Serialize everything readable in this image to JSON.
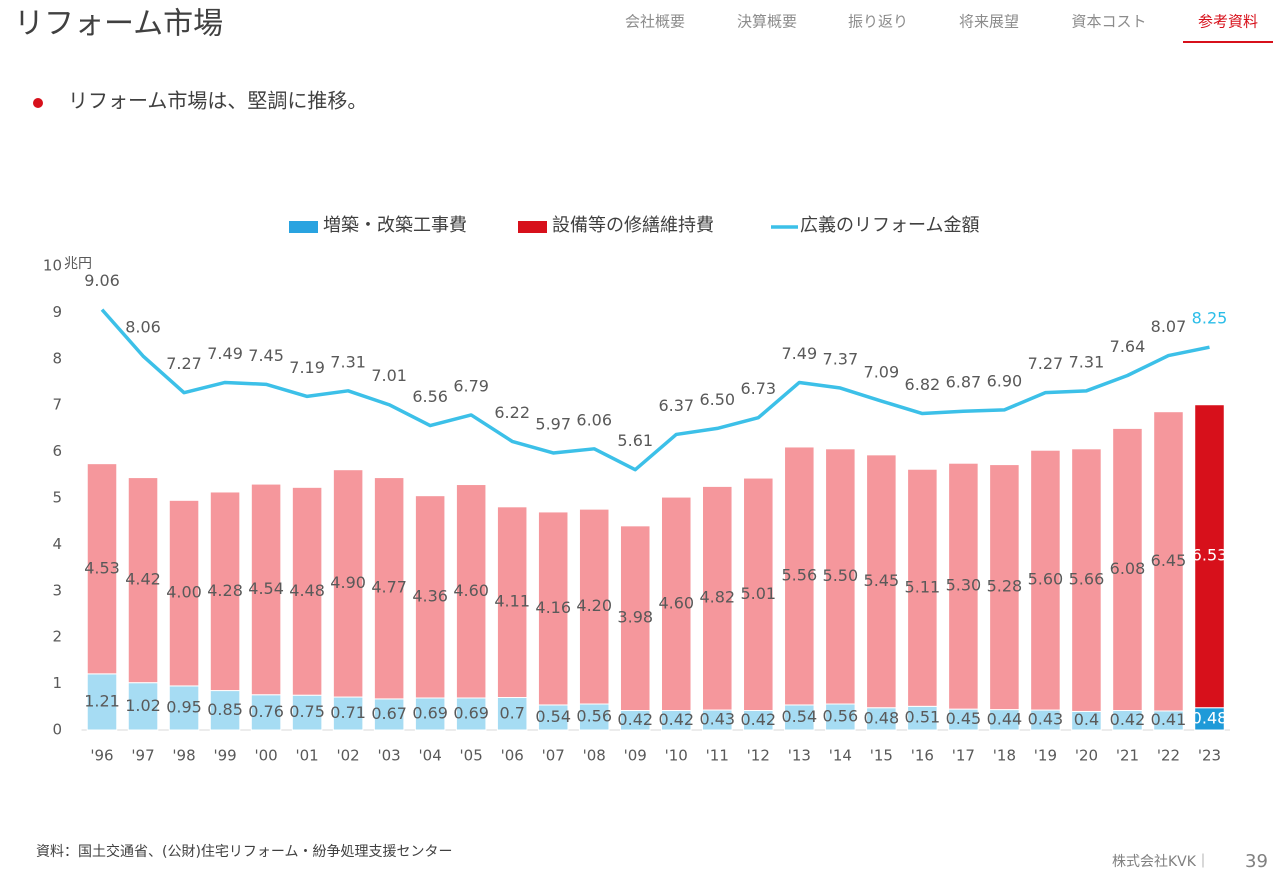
{
  "header": {
    "title": "リフォーム市場",
    "nav": [
      "会社概要",
      "決算概要",
      "振り返り",
      "将来展望",
      "資本コスト",
      "参考資料"
    ],
    "active_nav": 5
  },
  "bullet": "リフォーム市場は、堅調に推移。",
  "chart_data": {
    "type": "stacked_bar_line",
    "y_unit": "兆円",
    "categories": [
      "'96",
      "'97",
      "'98",
      "'99",
      "'00",
      "'01",
      "'02",
      "'03",
      "'04",
      "'05",
      "'06",
      "'07",
      "'08",
      "'09",
      "'10",
      "'11",
      "'12",
      "'13",
      "'14",
      "'15",
      "'16",
      "'17",
      "'18",
      "'19",
      "'20",
      "'21",
      "'22",
      "'23"
    ],
    "series": [
      {
        "name": "増築・改築工事費",
        "type": "bar",
        "color": "#29a3e0",
        "colors": [
          "#a6dcf3",
          "#a6dcf3",
          "#a6dcf3",
          "#a6dcf3",
          "#a6dcf3",
          "#a6dcf3",
          "#a6dcf3",
          "#a6dcf3",
          "#a6dcf3",
          "#a6dcf3",
          "#a6dcf3",
          "#a6dcf3",
          "#a6dcf3",
          "#a6dcf3",
          "#a6dcf3",
          "#a6dcf3",
          "#a6dcf3",
          "#a6dcf3",
          "#a6dcf3",
          "#a6dcf3",
          "#a6dcf3",
          "#a6dcf3",
          "#a6dcf3",
          "#a6dcf3",
          "#a6dcf3",
          "#a6dcf3",
          "#a6dcf3",
          "#1e9ad8"
        ],
        "values": [
          1.21,
          1.02,
          0.95,
          0.85,
          0.76,
          0.75,
          0.71,
          0.67,
          0.69,
          0.69,
          0.7,
          0.54,
          0.56,
          0.42,
          0.42,
          0.43,
          0.42,
          0.54,
          0.56,
          0.48,
          0.51,
          0.45,
          0.44,
          0.43,
          0.4,
          0.42,
          0.41,
          0.48
        ],
        "value_labels": [
          "1.21",
          "1.02",
          "0.95",
          "0.85",
          "0.76",
          "0.75",
          "0.71",
          "0.67",
          "0.69",
          "0.69",
          "0.7",
          "0.54",
          "0.56",
          "0.42",
          "0.42",
          "0.43",
          "0.42",
          "0.54",
          "0.56",
          "0.48",
          "0.51",
          "0.45",
          "0.44",
          "0.43",
          "0.4",
          "0.42",
          "0.41",
          "0.48"
        ],
        "value_label_colors": [
          "#595959",
          "#595959",
          "#595959",
          "#595959",
          "#595959",
          "#595959",
          "#595959",
          "#595959",
          "#595959",
          "#595959",
          "#595959",
          "#595959",
          "#595959",
          "#595959",
          "#595959",
          "#595959",
          "#595959",
          "#595959",
          "#595959",
          "#595959",
          "#595959",
          "#595959",
          "#595959",
          "#595959",
          "#595959",
          "#595959",
          "#595959",
          "#ffffff"
        ]
      },
      {
        "name": "設備等の修繕維持費",
        "type": "bar",
        "color": "#d7101b",
        "colors": [
          "#f5979c",
          "#f5979c",
          "#f5979c",
          "#f5979c",
          "#f5979c",
          "#f5979c",
          "#f5979c",
          "#f5979c",
          "#f5979c",
          "#f5979c",
          "#f5979c",
          "#f5979c",
          "#f5979c",
          "#f5979c",
          "#f5979c",
          "#f5979c",
          "#f5979c",
          "#f5979c",
          "#f5979c",
          "#f5979c",
          "#f5979c",
          "#f5979c",
          "#f5979c",
          "#f5979c",
          "#f5979c",
          "#f5979c",
          "#f5979c",
          "#d7101b"
        ],
        "values": [
          4.53,
          4.42,
          4.0,
          4.28,
          4.54,
          4.48,
          4.9,
          4.77,
          4.36,
          4.6,
          4.11,
          4.16,
          4.2,
          3.98,
          4.6,
          4.82,
          5.01,
          5.56,
          5.5,
          5.45,
          5.11,
          5.3,
          5.28,
          5.6,
          5.66,
          6.08,
          6.45,
          6.53
        ],
        "value_labels": [
          "4.53",
          "4.42",
          "4.00",
          "4.28",
          "4.54",
          "4.48",
          "4.90",
          "4.77",
          "4.36",
          "4.60",
          "4.11",
          "4.16",
          "4.20",
          "3.98",
          "4.60",
          "4.82",
          "5.01",
          "5.56",
          "5.50",
          "5.45",
          "5.11",
          "5.30",
          "5.28",
          "5.60",
          "5.66",
          "6.08",
          "6.45",
          "6.53"
        ],
        "value_label_colors": [
          "#595959",
          "#595959",
          "#595959",
          "#595959",
          "#595959",
          "#595959",
          "#595959",
          "#595959",
          "#595959",
          "#595959",
          "#595959",
          "#595959",
          "#595959",
          "#595959",
          "#595959",
          "#595959",
          "#595959",
          "#595959",
          "#595959",
          "#595959",
          "#595959",
          "#595959",
          "#595959",
          "#595959",
          "#595959",
          "#595959",
          "#595959",
          "#ffffff"
        ]
      },
      {
        "name": "広義のリフォーム金額",
        "type": "line",
        "color": "#3cc0e8",
        "values": [
          9.06,
          8.06,
          7.27,
          7.49,
          7.45,
          7.19,
          7.31,
          7.01,
          6.56,
          6.79,
          6.22,
          5.97,
          6.06,
          5.61,
          6.37,
          6.5,
          6.73,
          7.49,
          7.37,
          7.09,
          6.82,
          6.87,
          6.9,
          7.27,
          7.31,
          7.64,
          8.07,
          8.25
        ],
        "value_labels": [
          "9.06",
          "8.06",
          "7.27",
          "7.49",
          "7.45",
          "7.19",
          "7.31",
          "7.01",
          "6.56",
          "6.79",
          "6.22",
          "5.97",
          "6.06",
          "5.61",
          "6.37",
          "6.50",
          "6.73",
          "7.49",
          "7.37",
          "7.09",
          "6.82",
          "6.87",
          "6.90",
          "7.27",
          "7.31",
          "7.64",
          "8.07",
          "8.25"
        ],
        "value_label_colors": [
          "#595959",
          "#595959",
          "#595959",
          "#595959",
          "#595959",
          "#595959",
          "#595959",
          "#595959",
          "#595959",
          "#595959",
          "#595959",
          "#595959",
          "#595959",
          "#595959",
          "#595959",
          "#595959",
          "#595959",
          "#595959",
          "#595959",
          "#595959",
          "#595959",
          "#595959",
          "#595959",
          "#595959",
          "#595959",
          "#595959",
          "#595959",
          "#2bbde8"
        ]
      }
    ],
    "ylim": [
      0,
      10
    ],
    "yticks": [
      0,
      1,
      2,
      3,
      4,
      5,
      6,
      7,
      8,
      9,
      10
    ],
    "grid": false,
    "legend": "top"
  },
  "source": "資料：国土交通省、(公財)住宅リフォーム・紛争処理支援センター",
  "footer": {
    "company": "株式会社KVK｜",
    "page": "39"
  }
}
